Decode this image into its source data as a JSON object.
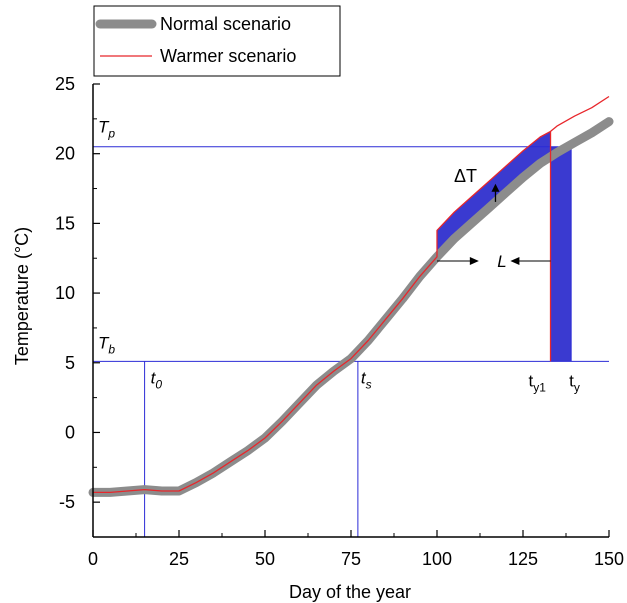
{
  "chart_data": {
    "type": "line",
    "xlabel": "Day of the year",
    "ylabel": "Temperature (°C)",
    "xlim": [
      0,
      150
    ],
    "ylim": [
      -7.5,
      25
    ],
    "xticks": [
      0,
      25,
      50,
      75,
      100,
      125,
      150
    ],
    "yticks": [
      -5,
      0,
      5,
      10,
      15,
      20,
      25
    ],
    "grid": false,
    "legend_position": "top-left",
    "colors": {
      "normal": "#8c8c8c",
      "warmer": "#e8262b",
      "guide": "#2b2bd6",
      "fill": "#3a3ad0",
      "axis": "#000000"
    },
    "series": [
      {
        "name": "Normal scenario",
        "x": [
          0,
          5,
          10,
          15,
          20,
          25,
          30,
          35,
          40,
          45,
          50,
          55,
          60,
          65,
          70,
          75,
          80,
          85,
          90,
          95,
          100,
          105,
          110,
          115,
          120,
          125,
          130,
          135,
          140,
          145,
          150
        ],
        "y": [
          -4.3,
          -4.3,
          -4.2,
          -4.1,
          -4.2,
          -4.2,
          -3.6,
          -2.9,
          -2.1,
          -1.3,
          -0.4,
          0.8,
          2.1,
          3.4,
          4.4,
          5.3,
          6.6,
          8.1,
          9.6,
          11.2,
          12.6,
          13.9,
          15.0,
          16.1,
          17.2,
          18.3,
          19.3,
          20.1,
          20.8,
          21.5,
          22.3
        ]
      },
      {
        "name": "Warmer scenario",
        "x": [
          0,
          5,
          10,
          15,
          20,
          25,
          30,
          35,
          40,
          45,
          50,
          55,
          60,
          65,
          70,
          75,
          80,
          85,
          90,
          95,
          100,
          100,
          105,
          110,
          115,
          120,
          125,
          130,
          133,
          133,
          135,
          140,
          145,
          150
        ],
        "y": [
          -4.3,
          -4.3,
          -4.2,
          -4.1,
          -4.2,
          -4.2,
          -3.6,
          -2.9,
          -2.1,
          -1.3,
          -0.4,
          0.8,
          2.1,
          3.4,
          4.4,
          5.3,
          6.6,
          8.1,
          9.6,
          11.2,
          12.6,
          14.5,
          15.8,
          16.9,
          18.0,
          19.1,
          20.2,
          21.2,
          21.6,
          21.6,
          22.0,
          22.7,
          23.3,
          24.1
        ]
      }
    ],
    "thresholds": [
      {
        "label": "T",
        "subscript": "p",
        "y": 20.5
      },
      {
        "label": "T",
        "subscript": "b",
        "y": 5.1
      }
    ],
    "markers": [
      {
        "label": "t",
        "subscript": "0",
        "x": 15
      },
      {
        "label": "t",
        "subscript": "s",
        "x": 77
      },
      {
        "label": "t",
        "subscript": "y1",
        "x": 133
      },
      {
        "label": "t",
        "subscript": "y",
        "x": 139
      }
    ],
    "annotations": {
      "delta_label": "ΔT",
      "length_label": "L"
    }
  }
}
